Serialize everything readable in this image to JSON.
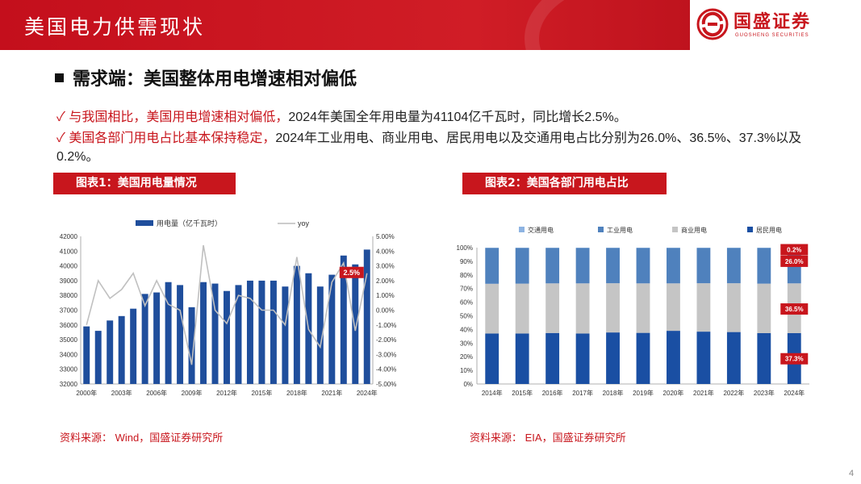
{
  "header": {
    "title": "美国电力供需现状",
    "logo_name": "国盛证券",
    "logo_sub": "GUOSHENG SECURITIES",
    "brand_color": "#c8161d"
  },
  "section": {
    "title": "需求端：美国整体用电增速相对偏低"
  },
  "bullets": [
    {
      "check": "✓",
      "lead": "与我国相比，美国用电增速相对偏低，",
      "rest": "2024年美国全年用电量为41104亿千瓦时，同比增长2.5%。"
    },
    {
      "check": "✓",
      "lead": "美国各部门用电占比基本保持稳定，",
      "rest": "2024年工业用电、商业用电、居民用电以及交通用电占比分别为26.0%、36.5%、37.3%以及0.2%。"
    }
  ],
  "chart1_label": "图表1：美国用电量情况",
  "chart2_label": "图表2：美国各部门用电占比",
  "source1": "资料来源：  Wind，国盛证券研究所",
  "source2": "资料来源：  EIA，国盛证券研究所",
  "page_number": "4",
  "chart_data": [
    {
      "type": "bar",
      "legend": [
        "用电量（亿千瓦时）",
        "yoy"
      ],
      "years": [
        2000,
        2001,
        2002,
        2003,
        2004,
        2005,
        2006,
        2007,
        2008,
        2009,
        2010,
        2011,
        2012,
        2013,
        2014,
        2015,
        2016,
        2017,
        2018,
        2019,
        2020,
        2021,
        2022,
        2023,
        2024
      ],
      "series": [
        {
          "name": "用电量（亿千瓦时）",
          "kind": "bar",
          "color": "#1f4e9c",
          "values": [
            35900,
            35600,
            36300,
            36600,
            37100,
            38100,
            38200,
            38900,
            38700,
            37200,
            38900,
            38800,
            38300,
            38700,
            39000,
            39000,
            39000,
            38600,
            40000,
            39500,
            38600,
            39400,
            40700,
            40100,
            41104
          ]
        },
        {
          "name": "yoy",
          "kind": "line",
          "color": "#c0c0c0",
          "values": [
            -1.0,
            2.0,
            0.8,
            1.4,
            2.5,
            0.3,
            2.0,
            0.4,
            0.0,
            -3.7,
            4.4,
            0.0,
            -0.9,
            1.0,
            0.8,
            0.0,
            0.0,
            -1.0,
            3.6,
            -1.3,
            -2.5,
            1.9,
            3.2,
            -1.4,
            2.5
          ]
        }
      ],
      "x_ticks": [
        "2000年",
        "2003年",
        "2006年",
        "2009年",
        "2012年",
        "2015年",
        "2018年",
        "2021年",
        "2024年"
      ],
      "y_left": {
        "min": 32000,
        "max": 42000,
        "step": 1000
      },
      "y_right": {
        "min": -5,
        "max": 5,
        "step": 1
      },
      "y_right_ticks": [
        "5.00%",
        "4.00%",
        "3.00%",
        "2.00%",
        "1.00%",
        "0.00%",
        "-1.00%",
        "-2.00%",
        "-3.00%",
        "-4.00%",
        "-5.00%"
      ],
      "annotation": {
        "year": 2024,
        "text": "2.5%"
      },
      "grid": false
    },
    {
      "type": "bar",
      "stacked": true,
      "categories": [
        "2014年",
        "2015年",
        "2016年",
        "2017年",
        "2018年",
        "2019年",
        "2020年",
        "2021年",
        "2022年",
        "2023年",
        "2024年"
      ],
      "legend": [
        "交通用电",
        "工业用电",
        "商业用电",
        "居民用电"
      ],
      "series": [
        {
          "name": "居民用电",
          "color": "#1a4fa3",
          "values": [
            37.0,
            37.0,
            37.4,
            37.0,
            37.8,
            37.5,
            39.0,
            38.4,
            38.1,
            37.3,
            37.3
          ]
        },
        {
          "name": "商业用电",
          "color": "#c5c5c5",
          "values": [
            36.5,
            36.6,
            36.4,
            36.8,
            36.1,
            36.3,
            34.8,
            35.5,
            35.8,
            36.3,
            36.5
          ]
        },
        {
          "name": "工业用电",
          "color": "#4f81bd",
          "values": [
            26.3,
            26.2,
            26.0,
            26.0,
            25.9,
            26.0,
            26.0,
            25.9,
            25.9,
            26.2,
            26.0
          ]
        },
        {
          "name": "交通用电",
          "color": "#8db3e2",
          "values": [
            0.2,
            0.2,
            0.2,
            0.2,
            0.2,
            0.2,
            0.2,
            0.2,
            0.2,
            0.2,
            0.2
          ]
        }
      ],
      "y_ticks": [
        "0%",
        "10%",
        "20%",
        "30%",
        "40%",
        "50%",
        "60%",
        "70%",
        "80%",
        "90%",
        "100%"
      ],
      "y_range": [
        0,
        100
      ],
      "annotations": [
        {
          "series": "交通用电",
          "text": "0.2%"
        },
        {
          "series": "工业用电",
          "text": "26.0%"
        },
        {
          "series": "商业用电",
          "text": "36.5%"
        },
        {
          "series": "居民用电",
          "text": "37.3%"
        }
      ],
      "grid": false
    }
  ]
}
